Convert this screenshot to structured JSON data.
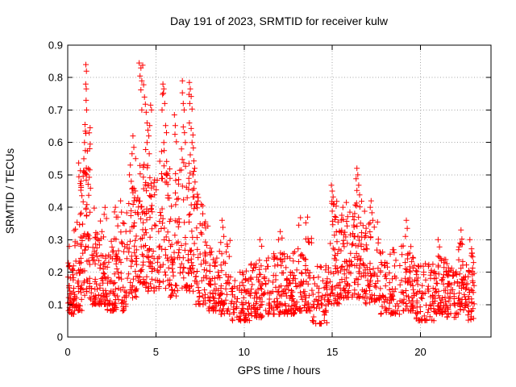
{
  "figure": {
    "background": "#ffffff"
  },
  "chart_data": {
    "type": "scatter",
    "title": "Day 191 of 2023, SRMTID for receiver kulw",
    "xlabel": "GPS time / hours",
    "ylabel": "SRMTID / TECUs",
    "xlim": [
      0,
      24
    ],
    "ylim": [
      0,
      0.9
    ],
    "xticks": [
      0,
      5,
      10,
      15,
      20
    ],
    "xtick_labels": [
      "0",
      "5",
      "10",
      "15",
      "20"
    ],
    "yticks": [
      0,
      0.1,
      0.2,
      0.3,
      0.4,
      0.5,
      0.6,
      0.7,
      0.8,
      0.9
    ],
    "ytick_labels": [
      "0",
      "0.1",
      "0.2",
      "0.3",
      "0.4",
      "0.5",
      "0.6",
      "0.7",
      "0.8",
      "0.9"
    ],
    "grid": true,
    "grid_style": "dotted",
    "legend": "none",
    "marker": "plus",
    "marker_color": "#ff0000",
    "grid_color": "#a6a6a6",
    "axis_color": "#000000",
    "series_name": "SRMTID",
    "x_data_range": [
      0,
      23.0
    ],
    "points_high": [
      [
        1.03,
        0.84
      ],
      [
        1.06,
        0.82
      ],
      [
        1.02,
        0.78
      ],
      [
        1.05,
        0.765
      ],
      [
        1.04,
        0.73
      ],
      [
        1.07,
        0.7
      ],
      [
        0.98,
        0.655
      ],
      [
        1.0,
        0.635
      ],
      [
        1.03,
        0.628
      ],
      [
        0.95,
        0.6
      ],
      [
        1.0,
        0.575
      ],
      [
        2.7,
        0.4
      ],
      [
        2.75,
        0.37
      ],
      [
        3.0,
        0.42
      ],
      [
        3.05,
        0.385
      ],
      [
        3.2,
        0.35
      ],
      [
        3.5,
        0.5
      ],
      [
        3.55,
        0.53
      ],
      [
        3.65,
        0.565
      ],
      [
        3.7,
        0.62
      ],
      [
        3.75,
        0.585
      ],
      [
        3.85,
        0.55
      ],
      [
        3.6,
        0.48
      ],
      [
        4.05,
        0.845
      ],
      [
        4.15,
        0.83
      ],
      [
        4.25,
        0.838
      ],
      [
        4.1,
        0.805
      ],
      [
        4.2,
        0.79
      ],
      [
        4.3,
        0.778
      ],
      [
        4.15,
        0.762
      ],
      [
        4.35,
        0.74
      ],
      [
        4.4,
        0.718
      ],
      [
        4.2,
        0.7
      ],
      [
        4.45,
        0.693
      ],
      [
        4.5,
        0.66
      ],
      [
        4.55,
        0.638
      ],
      [
        4.6,
        0.62
      ],
      [
        4.65,
        0.652
      ],
      [
        4.7,
        0.715
      ],
      [
        4.75,
        0.7
      ],
      [
        4.5,
        0.6
      ],
      [
        4.42,
        0.578
      ],
      [
        4.62,
        0.565
      ],
      [
        5.4,
        0.78
      ],
      [
        5.45,
        0.765
      ],
      [
        5.42,
        0.752
      ],
      [
        5.38,
        0.748
      ],
      [
        5.5,
        0.72
      ],
      [
        5.35,
        0.7
      ],
      [
        5.55,
        0.652
      ],
      [
        5.6,
        0.63
      ],
      [
        5.45,
        0.6
      ],
      [
        5.32,
        0.572
      ],
      [
        6.05,
        0.685
      ],
      [
        6.1,
        0.652
      ],
      [
        6.08,
        0.625
      ],
      [
        6.16,
        0.602
      ],
      [
        6.5,
        0.79
      ],
      [
        6.5,
        0.753
      ],
      [
        6.55,
        0.72
      ],
      [
        6.6,
        0.7
      ],
      [
        6.55,
        0.648
      ],
      [
        6.62,
        0.63
      ],
      [
        6.67,
        0.6
      ],
      [
        6.45,
        0.58
      ],
      [
        6.9,
        0.785
      ],
      [
        6.95,
        0.765
      ],
      [
        6.88,
        0.748
      ],
      [
        7.0,
        0.742
      ],
      [
        6.92,
        0.72
      ],
      [
        7.05,
        0.703
      ],
      [
        6.9,
        0.66
      ],
      [
        7.0,
        0.643
      ],
      [
        7.1,
        0.623
      ],
      [
        7.05,
        0.6
      ],
      [
        7.12,
        0.583
      ],
      [
        6.95,
        0.562
      ],
      [
        7.15,
        0.543
      ],
      [
        7.2,
        0.52
      ],
      [
        7.1,
        0.5
      ],
      [
        7.22,
        0.478
      ],
      [
        7.16,
        0.458
      ],
      [
        7.35,
        0.44
      ],
      [
        7.4,
        0.43
      ],
      [
        8.75,
        0.36
      ],
      [
        8.8,
        0.338
      ],
      [
        8.85,
        0.31
      ],
      [
        10.9,
        0.3
      ],
      [
        11.0,
        0.28
      ],
      [
        11.95,
        0.3
      ],
      [
        12.05,
        0.325
      ],
      [
        12.15,
        0.305
      ],
      [
        13.1,
        0.345
      ],
      [
        13.2,
        0.368
      ],
      [
        13.5,
        0.352
      ],
      [
        13.6,
        0.37
      ],
      [
        14.95,
        0.468
      ],
      [
        15.0,
        0.45
      ],
      [
        15.05,
        0.432
      ],
      [
        15.1,
        0.41
      ],
      [
        15.0,
        0.388
      ],
      [
        15.15,
        0.362
      ],
      [
        15.6,
        0.4
      ],
      [
        15.8,
        0.415
      ],
      [
        16.0,
        0.385
      ],
      [
        16.4,
        0.52
      ],
      [
        16.45,
        0.5
      ],
      [
        16.35,
        0.488
      ],
      [
        16.5,
        0.468
      ],
      [
        16.4,
        0.452
      ],
      [
        16.55,
        0.438
      ],
      [
        17.2,
        0.42
      ],
      [
        17.15,
        0.4
      ],
      [
        17.25,
        0.383
      ],
      [
        17.3,
        0.36
      ],
      [
        19.2,
        0.36
      ],
      [
        19.25,
        0.335
      ],
      [
        19.15,
        0.31
      ],
      [
        21.0,
        0.3
      ],
      [
        21.08,
        0.278
      ],
      [
        22.3,
        0.33
      ],
      [
        22.35,
        0.302
      ],
      [
        22.25,
        0.29
      ],
      [
        22.8,
        0.3
      ],
      [
        22.9,
        0.272
      ]
    ],
    "cloud_bins": [
      [
        0.0,
        0.35,
        38,
        0.07,
        0.22,
        1.5
      ],
      [
        0.02,
        0.12,
        4,
        0.18,
        0.31,
        1.0
      ],
      [
        0.35,
        0.85,
        48,
        0.08,
        0.36,
        1.8
      ],
      [
        0.6,
        0.98,
        20,
        0.28,
        0.56,
        1.2
      ],
      [
        0.85,
        1.3,
        45,
        0.12,
        0.52,
        1.5
      ],
      [
        0.95,
        1.28,
        10,
        0.5,
        0.66,
        1.0
      ],
      [
        1.3,
        2.2,
        85,
        0.1,
        0.32,
        1.9
      ],
      [
        1.45,
        2.2,
        8,
        0.3,
        0.4,
        1.0
      ],
      [
        2.2,
        3.3,
        90,
        0.08,
        0.3,
        1.8
      ],
      [
        2.5,
        3.3,
        8,
        0.3,
        0.42,
        1.0
      ],
      [
        3.3,
        3.95,
        60,
        0.12,
        0.46,
        1.5
      ],
      [
        3.95,
        4.55,
        62,
        0.15,
        0.56,
        1.4
      ],
      [
        4.55,
        5.15,
        55,
        0.14,
        0.5,
        1.5
      ],
      [
        5.15,
        5.75,
        52,
        0.15,
        0.58,
        1.4
      ],
      [
        5.75,
        6.35,
        55,
        0.12,
        0.52,
        1.5
      ],
      [
        6.35,
        7.25,
        72,
        0.14,
        0.55,
        1.4
      ],
      [
        7.25,
        7.95,
        58,
        0.1,
        0.42,
        1.7
      ],
      [
        7.95,
        8.55,
        52,
        0.08,
        0.28,
        1.7
      ],
      [
        8.55,
        9.25,
        52,
        0.07,
        0.3,
        1.7
      ],
      [
        9.25,
        10.35,
        72,
        0.05,
        0.18,
        1.5
      ],
      [
        9.6,
        10.3,
        6,
        0.17,
        0.24,
        1.0
      ],
      [
        10.35,
        11.35,
        78,
        0.06,
        0.24,
        1.6
      ],
      [
        11.35,
        12.35,
        78,
        0.07,
        0.26,
        1.6
      ],
      [
        12.35,
        13.05,
        62,
        0.07,
        0.27,
        1.6
      ],
      [
        13.05,
        13.85,
        62,
        0.08,
        0.31,
        1.5
      ],
      [
        13.85,
        14.85,
        66,
        0.04,
        0.22,
        1.6
      ],
      [
        14.85,
        15.45,
        56,
        0.1,
        0.42,
        1.3
      ],
      [
        15.45,
        16.25,
        70,
        0.12,
        0.38,
        1.4
      ],
      [
        16.25,
        16.85,
        56,
        0.12,
        0.43,
        1.3
      ],
      [
        16.85,
        17.65,
        60,
        0.1,
        0.36,
        1.5
      ],
      [
        17.65,
        18.85,
        82,
        0.07,
        0.27,
        1.6
      ],
      [
        18.85,
        19.65,
        60,
        0.08,
        0.29,
        1.5
      ],
      [
        19.65,
        20.85,
        82,
        0.05,
        0.23,
        1.6
      ],
      [
        20.85,
        21.45,
        52,
        0.07,
        0.25,
        1.5
      ],
      [
        21.45,
        22.15,
        56,
        0.06,
        0.23,
        1.6
      ],
      [
        22.15,
        22.65,
        46,
        0.08,
        0.29,
        1.4
      ],
      [
        22.65,
        23.05,
        40,
        0.05,
        0.26,
        1.4
      ]
    ],
    "seed": 20230191
  }
}
